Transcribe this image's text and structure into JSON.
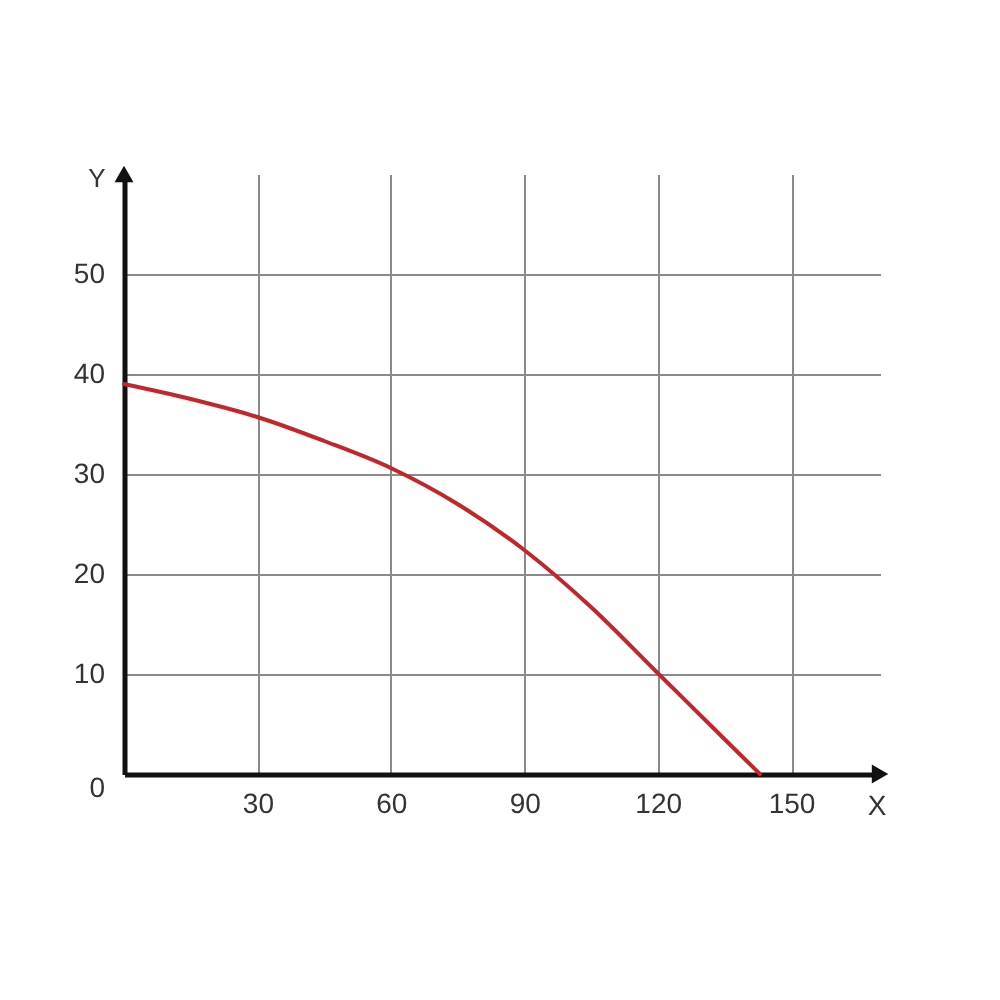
{
  "chart_data": {
    "type": "line",
    "xlabel": "X",
    "ylabel": "Y",
    "x": [
      0,
      15,
      30,
      45,
      60,
      75,
      90,
      105,
      120,
      135,
      143
    ],
    "series": [
      {
        "color": "#c0272d",
        "values": [
          39,
          37.5,
          35.7,
          33.3,
          30.6,
          27,
          22.4,
          16.7,
          10.1,
          3.5,
          0
        ]
      }
    ],
    "xlim": [
      0,
      170
    ],
    "ylim": [
      0,
      60
    ],
    "xticks": [
      30,
      60,
      90,
      120,
      150
    ],
    "yticks": [
      0,
      10,
      20,
      30,
      40,
      50
    ],
    "grid": true,
    "line_style": "solid"
  }
}
